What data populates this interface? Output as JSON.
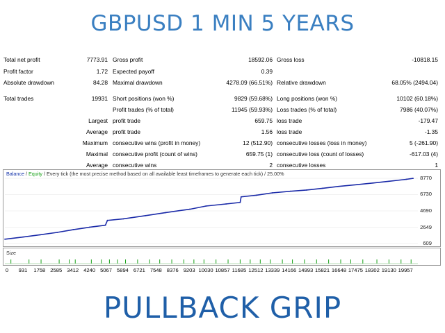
{
  "title": "GBPUSD 1 MIN 5 YEARS",
  "brand": "PULLBACK GRIP",
  "stats": {
    "total_net_profit_label": "Total net profit",
    "total_net_profit": "7773.91",
    "gross_profit_label": "Gross profit",
    "gross_profit": "18592.06",
    "gross_loss_label": "Gross loss",
    "gross_loss": "-10818.15",
    "profit_factor_label": "Profit factor",
    "profit_factor": "1.72",
    "expected_payoff_label": "Expected payoff",
    "expected_payoff": "0.39",
    "absolute_drawdown_label": "Absolute drawdown",
    "absolute_drawdown": "84.28",
    "maximal_drawdown_label": "Maximal drawdown",
    "maximal_drawdown": "4278.09 (66.51%)",
    "relative_drawdown_label": "Relative drawdown",
    "relative_drawdown": "68.05% (2494.04)",
    "total_trades_label": "Total trades",
    "total_trades": "19931",
    "short_positions_label": "Short positions (won %)",
    "short_positions": "9829 (59.68%)",
    "long_positions_label": "Long positions (won %)",
    "long_positions": "10102 (60.18%)",
    "profit_trades_label": "Profit trades (% of total)",
    "profit_trades": "11945 (59.93%)",
    "loss_trades_label": "Loss trades (% of total)",
    "loss_trades": "7986 (40.07%)",
    "largest_label": "Largest",
    "largest_profit_label": "profit trade",
    "largest_profit": "659.75",
    "largest_loss_label": "loss trade",
    "largest_loss": "-179.47",
    "average_label": "Average",
    "average_profit_label": "profit trade",
    "average_profit": "1.56",
    "average_loss_label": "loss trade",
    "average_loss": "-1.35",
    "maximum_label": "Maximum",
    "max_consec_wins_label": "consecutive wins (profit in money)",
    "max_consec_wins": "12 (512.90)",
    "max_consec_losses_label": "consecutive losses (loss in money)",
    "max_consec_losses": "5 (-261.90)",
    "maximal_label": "Maximal",
    "maximal_consec_profit_label": "consecutive profit (count of wins)",
    "maximal_consec_profit": "659.75 (1)",
    "maximal_consec_loss_label": "consecutive loss (count of losses)",
    "maximal_consec_loss": "-617.03 (4)",
    "average2_label": "Average",
    "avg_consec_wins_label": "consecutive wins",
    "avg_consec_wins": "2",
    "avg_consec_losses_label": "consecutive losses",
    "avg_consec_losses": "1"
  },
  "legend": {
    "balance": "Balance",
    "sep": " / ",
    "equity": "Equity",
    "rest": " / Every tick (the most precise method based on all available least timeframes to generate each tick) / 25.00%"
  },
  "size_label": "Size",
  "colors": {
    "balance": "#1a2aa8",
    "equity": "#16a016",
    "title": "#3a7fc1",
    "brand": "#1f5fa8"
  },
  "chart_data": {
    "type": "line",
    "xlabel": "",
    "ylabel": "",
    "x_ticks": [
      "0",
      "931",
      "1758",
      "2585",
      "3412",
      "4240",
      "5067",
      "5894",
      "6721",
      "7548",
      "8376",
      "9203",
      "10030",
      "10857",
      "11685",
      "12512",
      "13339",
      "14166",
      "14993",
      "15821",
      "16648",
      "17475",
      "18302",
      "19130",
      "19957"
    ],
    "y_ticks": [
      "8770",
      "6730",
      "4690",
      "2649",
      "609"
    ],
    "ylim": [
      609,
      8770
    ],
    "xlim": [
      0,
      20400
    ],
    "series": [
      {
        "name": "Balance",
        "x": [
          0,
          900,
          1750,
          2600,
          3400,
          4200,
          5000,
          5100,
          5900,
          7000,
          8000,
          9200,
          10000,
          11000,
          11700,
          11750,
          12500,
          13300,
          14200,
          15000,
          15800,
          16600,
          17500,
          18300,
          19100,
          19957,
          20300
        ],
        "y": [
          1150,
          1420,
          1700,
          2000,
          2340,
          2640,
          2900,
          3500,
          3700,
          4100,
          4480,
          4900,
          5300,
          5560,
          5750,
          6450,
          6650,
          6950,
          7150,
          7300,
          7520,
          7750,
          7970,
          8180,
          8400,
          8640,
          8760
        ]
      }
    ]
  },
  "size_bars_x": [
    300,
    1200,
    1800,
    2700,
    3200,
    3500,
    4300,
    4800,
    5200,
    5600,
    6000,
    6600,
    7200,
    7700,
    8300,
    8900,
    9400,
    9900,
    10500,
    11100,
    11700,
    12200,
    12700,
    13200,
    13800,
    14300,
    14900,
    15500,
    16100,
    16700,
    17200,
    17800,
    18500,
    19100,
    19700,
    20200
  ]
}
